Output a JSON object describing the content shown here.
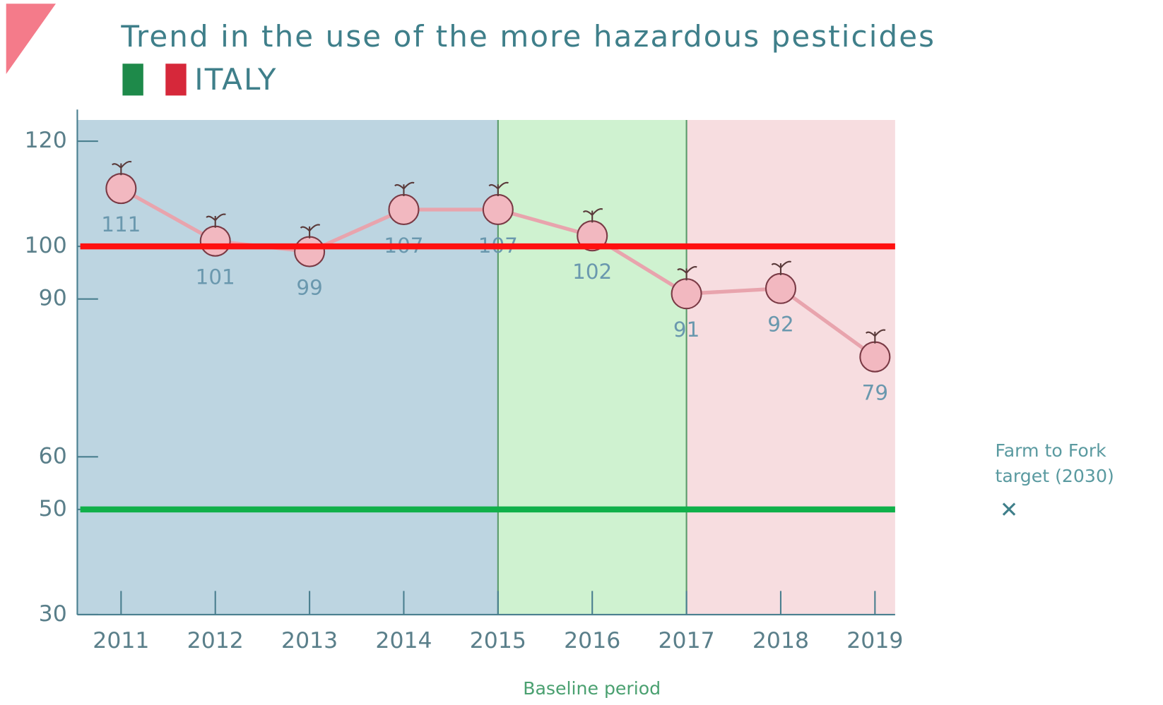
{
  "chart_data": {
    "type": "line",
    "title": "Trend in the use of the more hazardous pesticides",
    "subtitle": "ITALY",
    "categories": [
      "2011",
      "2012",
      "2013",
      "2014",
      "2015",
      "2016",
      "2017",
      "2018",
      "2019"
    ],
    "values": [
      111,
      101,
      99,
      107,
      107,
      102,
      91,
      92,
      79
    ],
    "color": "#e8a4ad",
    "ylim": [
      30,
      126
    ],
    "yticks": [
      120,
      100,
      90,
      60,
      50,
      30
    ],
    "bands": [
      {
        "to": "2015",
        "color": "#bdd5e1"
      },
      {
        "from": "2015",
        "to": "2017",
        "color": "#cff2d0"
      },
      {
        "from": "2017",
        "color": "#f7dde0"
      }
    ],
    "reference_lines": [
      {
        "value": 100,
        "color": "#ff1010"
      },
      {
        "value": 50,
        "color": "#10b04a"
      }
    ],
    "x_annotation": "Baseline period",
    "annotation": [
      "Farm to Fork",
      "target (2030)"
    ],
    "annotation_marker": "✕"
  }
}
